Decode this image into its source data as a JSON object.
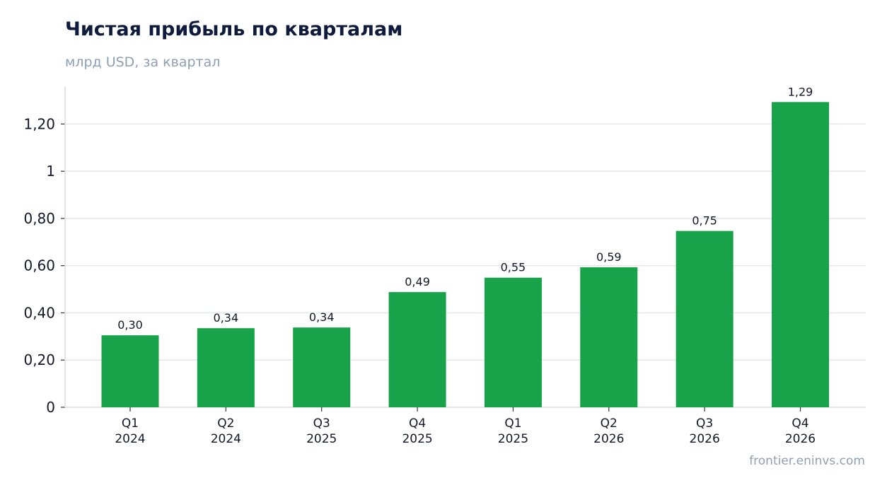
{
  "header": {
    "title": "Чистая прибыль по кварталам",
    "subtitle": "млрд USD, за квартал"
  },
  "footer": {
    "source": "frontier.eninvs.com"
  },
  "colors": {
    "bar": "#18a34a",
    "title": "#0e1b3d",
    "muted": "#8fa0b3"
  },
  "chart_data": {
    "type": "bar",
    "title": "Чистая прибыль по кварталам",
    "subtitle": "млрд USD, за квартал",
    "xlabel": "",
    "ylabel": "",
    "categories": [
      [
        "Q1",
        "2024"
      ],
      [
        "Q2",
        "2024"
      ],
      [
        "Q3",
        "2025"
      ],
      [
        "Q4",
        "2025"
      ],
      [
        "Q1",
        "2025"
      ],
      [
        "Q2",
        "2026"
      ],
      [
        "Q3",
        "2026"
      ],
      [
        "Q4",
        "2026"
      ]
    ],
    "values": [
      0.305,
      0.335,
      0.338,
      0.488,
      0.549,
      0.593,
      0.747,
      1.293
    ],
    "data_labels": [
      "0,30",
      "0,34",
      "0,34",
      "0,49",
      "0,55",
      "0,59",
      "0,75",
      "1,29"
    ],
    "ylim": [
      0,
      1.36
    ],
    "yticks": [
      0,
      0.2,
      0.4,
      0.6,
      0.8,
      1.0,
      1.2
    ],
    "ytick_labels": [
      "0",
      "0,20",
      "0,40",
      "0,60",
      "0,80",
      "1",
      "1,20"
    ],
    "grid": "horizontal",
    "legend": "none"
  }
}
